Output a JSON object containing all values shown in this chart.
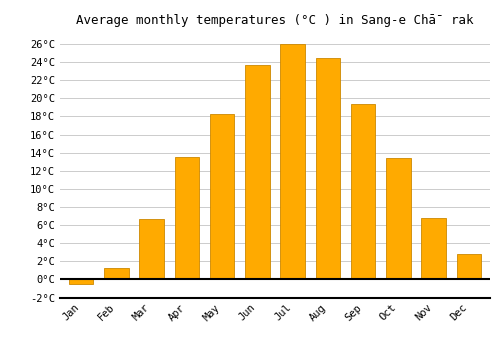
{
  "title": "Average monthly temperatures (°C ) in Sang-e Chā̄ rak",
  "months": [
    "Jan",
    "Feb",
    "Mar",
    "Apr",
    "May",
    "Jun",
    "Jul",
    "Aug",
    "Sep",
    "Oct",
    "Nov",
    "Dec"
  ],
  "values": [
    -0.5,
    1.3,
    6.7,
    13.5,
    18.3,
    23.7,
    26.0,
    24.5,
    19.4,
    13.4,
    6.8,
    2.8
  ],
  "bar_color": "#FFAA00",
  "bar_edge_color": "#CC8800",
  "background_color": "#FFFFFF",
  "plot_bg_color": "#FFFFFF",
  "grid_color": "#CCCCCC",
  "ylim": [
    -2,
    27
  ],
  "yticks": [
    -2,
    0,
    2,
    4,
    6,
    8,
    10,
    12,
    14,
    16,
    18,
    20,
    22,
    24,
    26
  ],
  "ylabel_suffix": "°C",
  "title_fontsize": 9,
  "tick_fontsize": 7.5,
  "font_family": "monospace"
}
